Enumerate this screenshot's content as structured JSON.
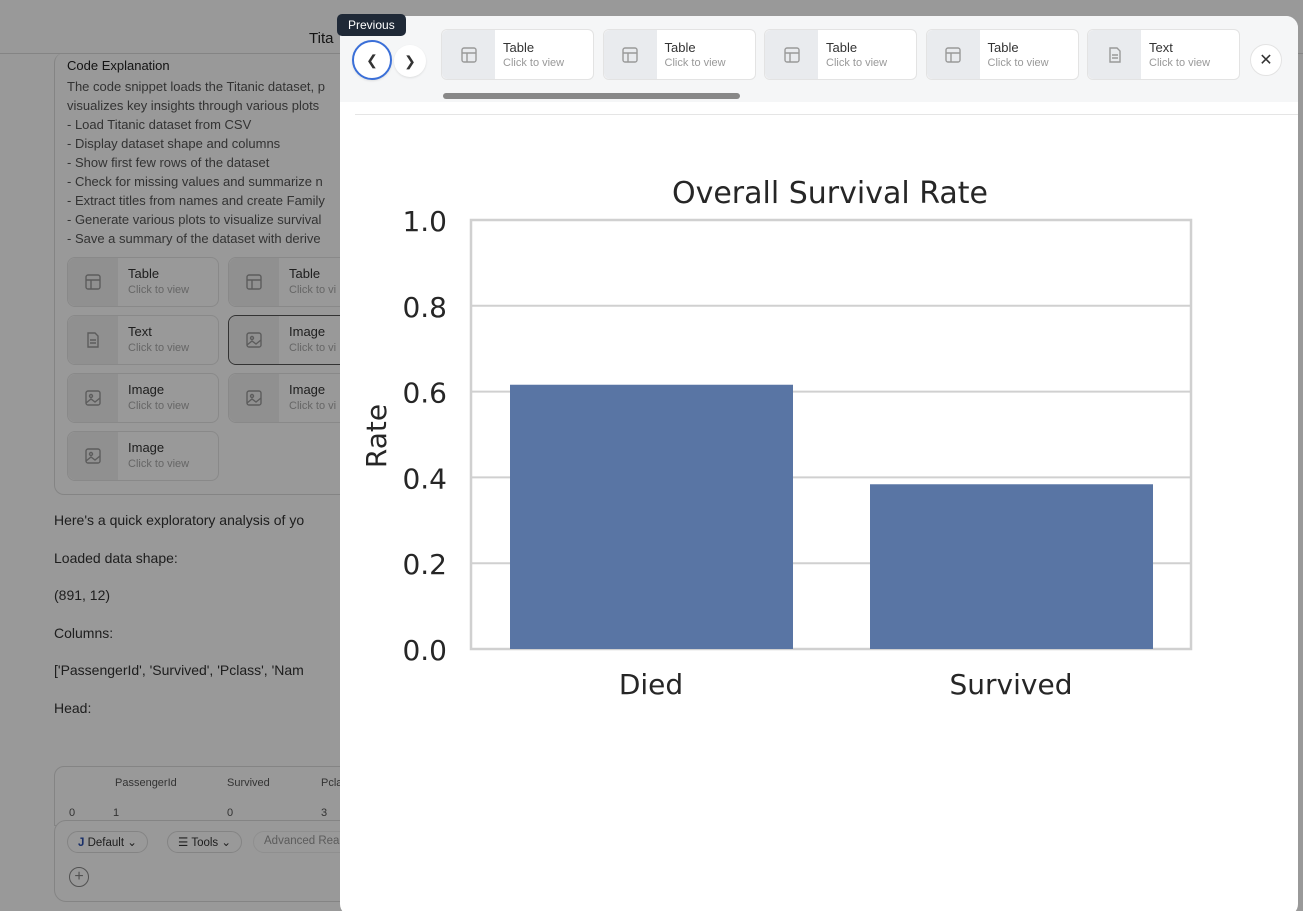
{
  "app": {
    "title": "Tita"
  },
  "explanation": {
    "heading": "Code Explanation",
    "lines": [
      "The code snippet loads the Titanic dataset, p",
      "visualizes key insights through various plots",
      "- Load Titanic dataset from CSV",
      "- Display dataset shape and columns",
      "- Show first few rows of the dataset",
      "- Check for missing values and summarize n",
      "- Extract titles from names and create Family",
      "- Generate various plots to visualize survival",
      "- Save a summary of the dataset with derive"
    ]
  },
  "artifacts": [
    {
      "type": "Table",
      "sub": "Click to view"
    },
    {
      "type": "Table",
      "sub": "Click to vi"
    },
    {
      "type": "Text",
      "sub": "Click to view"
    },
    {
      "type": "Image",
      "sub": "Click to vi"
    },
    {
      "type": "Image",
      "sub": "Click to view"
    },
    {
      "type": "Image",
      "sub": "Click to vi"
    },
    {
      "type": "Image",
      "sub": "Click to view"
    }
  ],
  "body": {
    "intro": "Here's a quick exploratory analysis of yo",
    "shape_label": "Loaded data shape:",
    "shape": "(891, 12)",
    "columns_label": "Columns:",
    "columns": "['PassengerId', 'Survived', 'Pclass', 'Nam",
    "head_label": "Head:"
  },
  "table": {
    "headers": [
      "",
      "PassengerId",
      "Survived",
      "Pcla"
    ],
    "row": [
      "0",
      "1",
      "0",
      "3"
    ]
  },
  "composer": {
    "model": "Default",
    "tools": "Tools",
    "advanced": "Advanced Rea"
  },
  "modal": {
    "tooltip": "Previous",
    "thumbs": [
      {
        "type": "Table",
        "sub": "Click to view"
      },
      {
        "type": "Table",
        "sub": "Click to view"
      },
      {
        "type": "Table",
        "sub": "Click to view"
      },
      {
        "type": "Table",
        "sub": "Click to view"
      },
      {
        "type": "Text",
        "sub": "Click to view"
      }
    ]
  },
  "chart_data": {
    "type": "bar",
    "title": "Overall Survival Rate",
    "xlabel": "",
    "ylabel": "Rate",
    "categories": [
      "Died",
      "Survived"
    ],
    "values": [
      0.616,
      0.384
    ],
    "ylim": [
      0,
      1
    ],
    "yticks": [
      "0.0",
      "0.2",
      "0.4",
      "0.6",
      "0.8",
      "1.0"
    ],
    "grid": true,
    "bar_color": "#5975a4"
  }
}
